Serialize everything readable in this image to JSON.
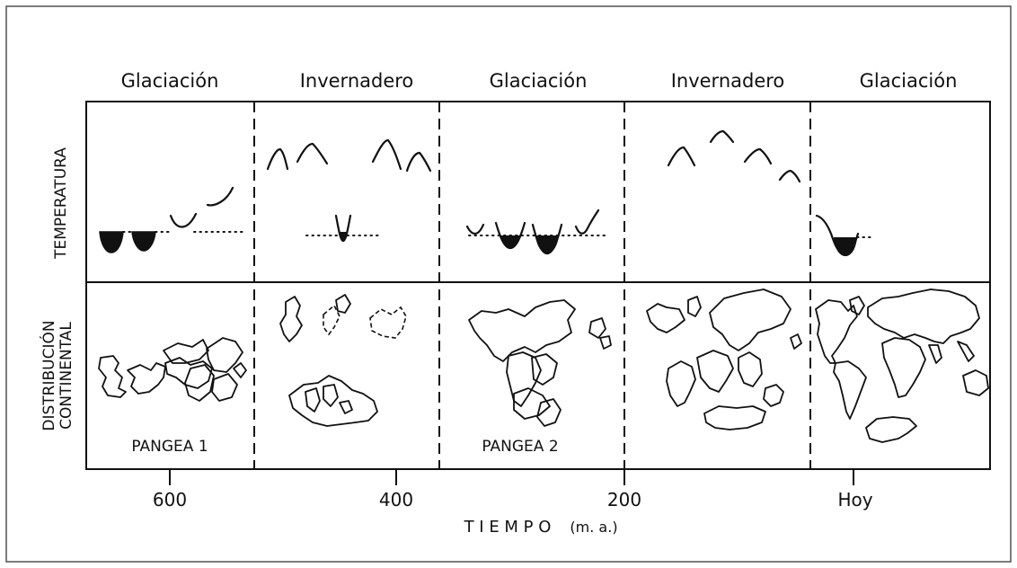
{
  "eras": [
    {
      "label": "Glaciación"
    },
    {
      "label": "Invernadero"
    },
    {
      "label": "Glaciación"
    },
    {
      "label": "Invernadero"
    },
    {
      "label": "Glaciación"
    }
  ],
  "row_labels": {
    "temperature": "TEMPERATURA",
    "distribution_line1": "DISTRIBUCIÓN",
    "distribution_line2": "CONTINENTAL"
  },
  "pangea_labels": {
    "p1": "PANGEA 1",
    "p2": "PANGEA 2"
  },
  "axis": {
    "ticks": [
      "600",
      "400",
      "200",
      "Hoy"
    ],
    "title_main": "T I E M P O",
    "title_unit": "(m. a.)"
  }
}
